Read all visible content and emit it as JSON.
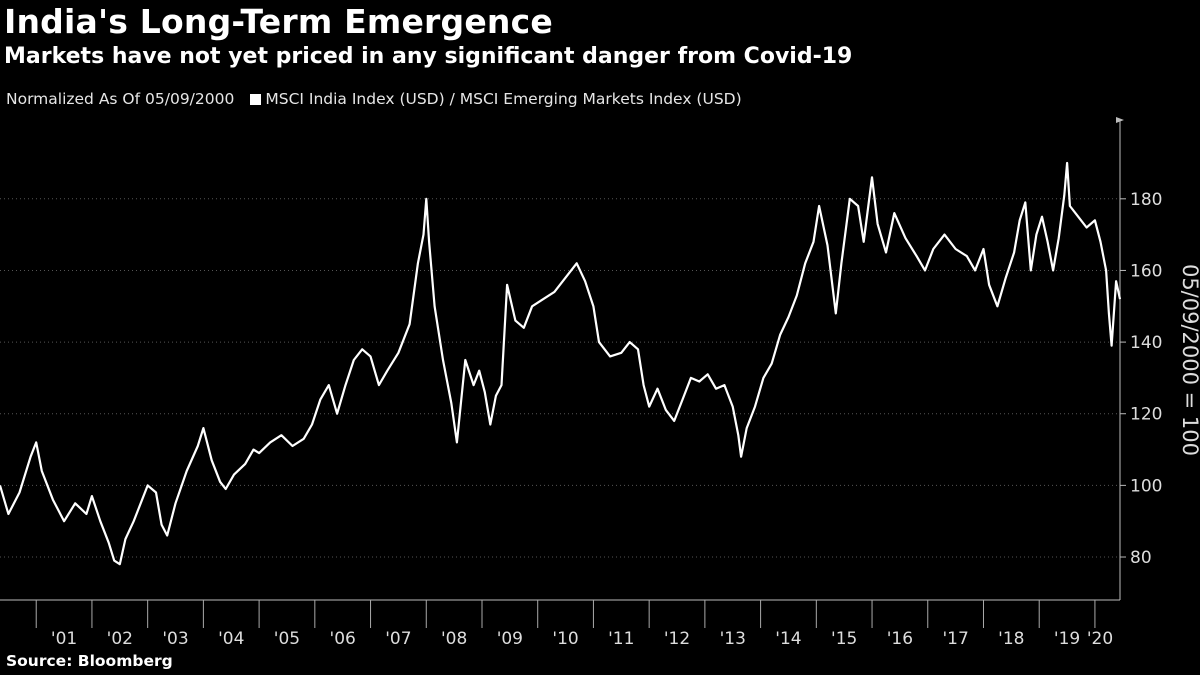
{
  "chart_data": {
    "type": "line",
    "title": "India's Long-Term Emergence",
    "subtitle": "Markets have not yet priced in any significant danger from Covid-19",
    "legend_note": "Normalized As Of 05/09/2000",
    "series": [
      {
        "name": "MSCI India Index (USD) / MSCI Emerging Markets Index (USD)",
        "color": "#ffffff",
        "points": [
          [
            2000.35,
            100
          ],
          [
            2000.5,
            92
          ],
          [
            2000.7,
            98
          ],
          [
            2000.9,
            108
          ],
          [
            2001.0,
            112
          ],
          [
            2001.1,
            104
          ],
          [
            2001.3,
            96
          ],
          [
            2001.5,
            90
          ],
          [
            2001.7,
            95
          ],
          [
            2001.9,
            92
          ],
          [
            2002.0,
            97
          ],
          [
            2002.15,
            90
          ],
          [
            2002.3,
            84
          ],
          [
            2002.4,
            79
          ],
          [
            2002.5,
            78
          ],
          [
            2002.6,
            85
          ],
          [
            2002.75,
            90
          ],
          [
            2002.9,
            96
          ],
          [
            2003.0,
            100
          ],
          [
            2003.15,
            98
          ],
          [
            2003.25,
            89
          ],
          [
            2003.35,
            86
          ],
          [
            2003.5,
            95
          ],
          [
            2003.7,
            104
          ],
          [
            2003.9,
            111
          ],
          [
            2004.0,
            116
          ],
          [
            2004.15,
            107
          ],
          [
            2004.3,
            101
          ],
          [
            2004.4,
            99
          ],
          [
            2004.55,
            103
          ],
          [
            2004.75,
            106
          ],
          [
            2004.9,
            110
          ],
          [
            2005.0,
            109
          ],
          [
            2005.2,
            112
          ],
          [
            2005.4,
            114
          ],
          [
            2005.6,
            111
          ],
          [
            2005.8,
            113
          ],
          [
            2005.95,
            117
          ],
          [
            2006.1,
            124
          ],
          [
            2006.25,
            128
          ],
          [
            2006.4,
            120
          ],
          [
            2006.55,
            128
          ],
          [
            2006.7,
            135
          ],
          [
            2006.85,
            138
          ],
          [
            2007.0,
            136
          ],
          [
            2007.15,
            128
          ],
          [
            2007.3,
            132
          ],
          [
            2007.5,
            137
          ],
          [
            2007.7,
            145
          ],
          [
            2007.85,
            162
          ],
          [
            2007.95,
            170
          ],
          [
            2008.0,
            180
          ],
          [
            2008.05,
            168
          ],
          [
            2008.15,
            150
          ],
          [
            2008.3,
            135
          ],
          [
            2008.45,
            123
          ],
          [
            2008.55,
            112
          ],
          [
            2008.7,
            135
          ],
          [
            2008.85,
            128
          ],
          [
            2008.95,
            132
          ],
          [
            2009.05,
            126
          ],
          [
            2009.15,
            117
          ],
          [
            2009.25,
            125
          ],
          [
            2009.35,
            128
          ],
          [
            2009.45,
            156
          ],
          [
            2009.6,
            146
          ],
          [
            2009.75,
            144
          ],
          [
            2009.9,
            150
          ],
          [
            2010.1,
            152
          ],
          [
            2010.3,
            154
          ],
          [
            2010.5,
            158
          ],
          [
            2010.7,
            162
          ],
          [
            2010.85,
            157
          ],
          [
            2011.0,
            150
          ],
          [
            2011.1,
            140
          ],
          [
            2011.3,
            136
          ],
          [
            2011.5,
            137
          ],
          [
            2011.65,
            140
          ],
          [
            2011.8,
            138
          ],
          [
            2011.9,
            128
          ],
          [
            2012.0,
            122
          ],
          [
            2012.15,
            127
          ],
          [
            2012.3,
            121
          ],
          [
            2012.45,
            118
          ],
          [
            2012.6,
            124
          ],
          [
            2012.75,
            130
          ],
          [
            2012.9,
            129
          ],
          [
            2013.05,
            131
          ],
          [
            2013.2,
            127
          ],
          [
            2013.35,
            128
          ],
          [
            2013.5,
            122
          ],
          [
            2013.6,
            114
          ],
          [
            2013.65,
            108
          ],
          [
            2013.75,
            116
          ],
          [
            2013.9,
            122
          ],
          [
            2014.05,
            130
          ],
          [
            2014.2,
            134
          ],
          [
            2014.35,
            142
          ],
          [
            2014.5,
            147
          ],
          [
            2014.65,
            153
          ],
          [
            2014.8,
            162
          ],
          [
            2014.95,
            168
          ],
          [
            2015.05,
            178
          ],
          [
            2015.2,
            167
          ],
          [
            2015.35,
            148
          ],
          [
            2015.45,
            162
          ],
          [
            2015.6,
            180
          ],
          [
            2015.75,
            178
          ],
          [
            2015.85,
            168
          ],
          [
            2016.0,
            186
          ],
          [
            2016.1,
            173
          ],
          [
            2016.25,
            165
          ],
          [
            2016.4,
            176
          ],
          [
            2016.6,
            169
          ],
          [
            2016.8,
            164
          ],
          [
            2016.95,
            160
          ],
          [
            2017.1,
            166
          ],
          [
            2017.3,
            170
          ],
          [
            2017.5,
            166
          ],
          [
            2017.7,
            164
          ],
          [
            2017.85,
            160
          ],
          [
            2018.0,
            166
          ],
          [
            2018.1,
            156
          ],
          [
            2018.25,
            150
          ],
          [
            2018.4,
            158
          ],
          [
            2018.55,
            165
          ],
          [
            2018.65,
            174
          ],
          [
            2018.75,
            179
          ],
          [
            2018.85,
            160
          ],
          [
            2018.95,
            170
          ],
          [
            2019.05,
            175
          ],
          [
            2019.15,
            168
          ],
          [
            2019.25,
            160
          ],
          [
            2019.35,
            169
          ],
          [
            2019.45,
            181
          ],
          [
            2019.5,
            190
          ],
          [
            2019.55,
            178
          ],
          [
            2019.7,
            175
          ],
          [
            2019.85,
            172
          ],
          [
            2020.0,
            174
          ],
          [
            2020.1,
            168
          ],
          [
            2020.2,
            160
          ],
          [
            2020.25,
            148
          ],
          [
            2020.3,
            139
          ],
          [
            2020.38,
            157
          ],
          [
            2020.45,
            152
          ]
        ]
      }
    ],
    "xlim": [
      2000.35,
      2020.45
    ],
    "ylim": [
      68,
      202
    ],
    "x_ticks": [
      "'01",
      "'02",
      "'03",
      "'04",
      "'05",
      "'06",
      "'07",
      "'08",
      "'09",
      "'10",
      "'11",
      "'12",
      "'13",
      "'14",
      "'15",
      "'16",
      "'17",
      "'18",
      "'19",
      "'20"
    ],
    "x_tick_years": [
      2001,
      2002,
      2003,
      2004,
      2005,
      2006,
      2007,
      2008,
      2009,
      2010,
      2011,
      2012,
      2013,
      2014,
      2015,
      2016,
      2017,
      2018,
      2019,
      2020
    ],
    "y_ticks": [
      80,
      100,
      120,
      140,
      160,
      180
    ],
    "ylabel": "05/09/2000 = 100",
    "xlabel": ""
  },
  "source": "Source: Bloomberg",
  "colors": {
    "background": "#000000",
    "line": "#ffffff",
    "text": "#dddddd"
  }
}
